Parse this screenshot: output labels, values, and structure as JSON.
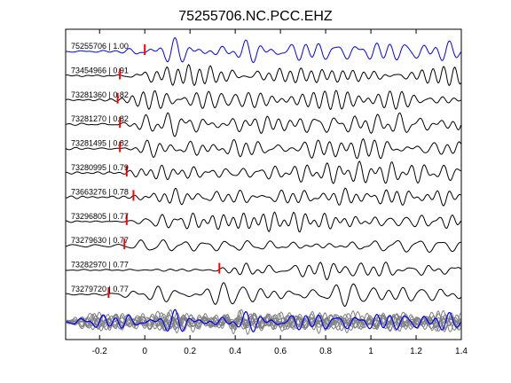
{
  "chart_data": {
    "type": "line",
    "title": "75255706.NC.PCC.EHZ",
    "xlabel": "",
    "ylabel": "",
    "xlim": [
      -0.35,
      1.4
    ],
    "xticks": [
      -0.2,
      0,
      0.2,
      0.4,
      0.6,
      0.8,
      1,
      1.2,
      1.4
    ],
    "xtick_labels": [
      "-0.2",
      "0",
      "0.2",
      "0.4",
      "0.6",
      "0.8",
      "1",
      "1.2",
      "1.4"
    ],
    "grid": false,
    "colors": {
      "reference": "#0000ff",
      "trace": "#000000",
      "pick": "#ff0000",
      "stack_gray": "#808080"
    },
    "series": [
      {
        "label": "75255706 | 1.00",
        "pick": 0.0,
        "color": "#0000ff"
      },
      {
        "label": "73454966 | 0.91",
        "pick": -0.11,
        "color": "#000000"
      },
      {
        "label": "73281360 | 0.82",
        "pick": -0.12,
        "color": "#000000"
      },
      {
        "label": "73281270 | 0.82",
        "pick": -0.11,
        "color": "#000000"
      },
      {
        "label": "73281495 | 0.82",
        "pick": -0.11,
        "color": "#000000"
      },
      {
        "label": "73280995 | 0.79",
        "pick": -0.08,
        "color": "#000000"
      },
      {
        "label": "73663276 | 0.78",
        "pick": -0.05,
        "color": "#000000"
      },
      {
        "label": "73296805 | 0.77",
        "pick": -0.08,
        "color": "#000000"
      },
      {
        "label": "73279630 | 0.77",
        "pick": -0.09,
        "color": "#000000"
      },
      {
        "label": "73282970 | 0.77",
        "pick": 0.33,
        "color": "#000000"
      },
      {
        "label": "73279720 | 0.77",
        "pick": -0.16,
        "color": "#000000"
      }
    ]
  }
}
